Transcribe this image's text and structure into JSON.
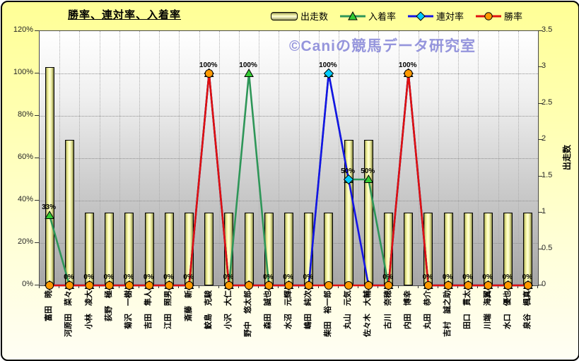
{
  "chart": {
    "title": "勝率、連対率、入着率",
    "watermark": "©Caniの競馬データ研究室",
    "legend": {
      "items": [
        {
          "label": "出走数",
          "type": "bar"
        },
        {
          "label": "入着率",
          "type": "line-triangle"
        },
        {
          "label": "連対率",
          "type": "line-diamond"
        },
        {
          "label": "勝率",
          "type": "line-circle"
        }
      ]
    },
    "left_axis": {
      "tick_labels": [
        "120%",
        "100%",
        "80%",
        "60%",
        "40%",
        "20%",
        "0%"
      ],
      "range": [
        0,
        120
      ]
    },
    "right_axis": {
      "tick_labels": [
        "3.5",
        "3",
        "2.5",
        "2",
        "1.5",
        "1",
        "0.5",
        "0"
      ],
      "range": [
        0,
        3.5
      ],
      "title": "出走数"
    }
  },
  "colors": {
    "chart_bg_top": "#ffff96",
    "plot_bg_bottom": "#a6a6a6",
    "bar_fill_light": "#ffffd8",
    "bar_fill_dark": "#77773f",
    "nyuchaku_line": "#2e9658",
    "nyuchaku_marker": "#33cc33",
    "rentai_line": "#1414e6",
    "rentai_marker": "#00ccff",
    "shoritsu_line": "#e01010",
    "shoritsu_marker": "#ff9900",
    "watermark": "#9595dc"
  },
  "chart_data": {
    "type": "bar",
    "subtype": "combo-bar-line",
    "title": "勝率、連対率、入着率",
    "left_ylim": [
      0,
      120
    ],
    "right_ylim": [
      0,
      3.5
    ],
    "right_ylabel": "出走数",
    "grid": "dotted, horizontal every 20%, vertical at category boundaries",
    "legend_position": "top",
    "categories": [
      "富田　暁",
      "河原田　菜々",
      "小林　凌大",
      "荻野　極",
      "菊沢　一樹",
      "吉田　隼人",
      "江田　照男",
      "斎藤　新",
      "鮫島　克駿",
      "小沢　大仁",
      "野中　悠太郎",
      "森田　誠也",
      "水沼　元輝",
      "嶋田　純次",
      "柴田　裕一郎",
      "丸山　元気",
      "佐々木　大輔",
      "古川　奈穂",
      "内田　博幸",
      "丸田　恭介",
      "吉村　誠之助",
      "田口　貫太",
      "川端　海翼",
      "水口　優也",
      "泉谷　楓真"
    ],
    "series": [
      {
        "name": "出走数",
        "type": "bar",
        "axis": "right",
        "values": [
          3,
          2,
          1,
          1,
          1,
          1,
          1,
          1,
          1,
          1,
          1,
          1,
          1,
          1,
          1,
          2,
          2,
          1,
          1,
          1,
          1,
          1,
          1,
          1,
          1
        ]
      },
      {
        "name": "入着率",
        "type": "line",
        "axis": "left",
        "marker": "triangle",
        "line_color": "#2e9658",
        "marker_color": "#33cc33",
        "values": [
          33,
          0,
          0,
          0,
          0,
          0,
          0,
          0,
          100,
          0,
          100,
          0,
          0,
          0,
          100,
          50,
          50,
          0,
          100,
          0,
          0,
          0,
          0,
          0,
          0
        ],
        "data_labels": [
          "33%",
          "0%",
          "0%",
          "0%",
          "0%",
          "0%",
          "0%",
          "0%",
          "100%",
          "0%",
          "100%",
          "0%",
          "0%",
          "0%",
          "100%",
          "50%",
          "50%",
          "0%",
          "100%",
          "0%",
          "0%",
          "0%",
          "0%",
          "0%",
          "0%"
        ]
      },
      {
        "name": "連対率",
        "type": "line",
        "axis": "left",
        "marker": "diamond",
        "line_color": "#1414e6",
        "marker_color": "#00ccff",
        "values": [
          0,
          0,
          0,
          0,
          0,
          0,
          0,
          0,
          100,
          0,
          0,
          0,
          0,
          0,
          100,
          50,
          0,
          0,
          100,
          0,
          0,
          0,
          0,
          0,
          0
        ]
      },
      {
        "name": "勝率",
        "type": "line",
        "axis": "left",
        "marker": "circle",
        "line_color": "#e01010",
        "marker_color": "#ff9900",
        "values": [
          0,
          0,
          0,
          0,
          0,
          0,
          0,
          0,
          100,
          0,
          0,
          0,
          0,
          0,
          0,
          0,
          0,
          0,
          100,
          0,
          0,
          0,
          0,
          0,
          0
        ]
      }
    ]
  }
}
